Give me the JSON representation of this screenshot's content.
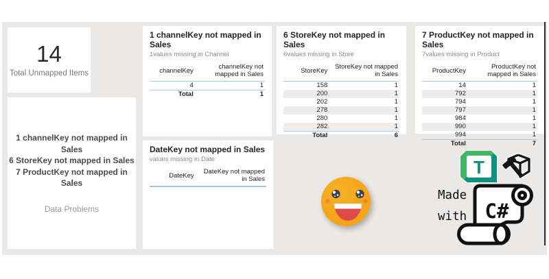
{
  "page": {
    "background": "#ffffff",
    "canvas_bg": "#EBE9E7"
  },
  "colors": {
    "accent_line": "#A6C9E8",
    "row_stripe": "#EFEDEB",
    "title_text": "#252423",
    "subtitle_text": "#8F8D8B",
    "kpi_label_text": "#7C7A78",
    "problems_text": "#4D4B49",
    "emoji_face": "#F4A51D",
    "emoji_mouth_red": "#E14B47",
    "logo_green": "#41B864",
    "logo_teal": "#0D9180"
  },
  "kpi_card": {
    "value": "14",
    "label": "Total Unmapped Items"
  },
  "problems_card": {
    "lines": [
      "1 channelKey not mapped in Sales",
      "6 StoreKey not mapped in Sales",
      "7 ProductKey not mapped in Sales"
    ],
    "label": "Data Problems"
  },
  "tables": [
    {
      "title": "1 channelKey not mapped in Sales",
      "subtitle": "1values missing in Channel",
      "columns": [
        "channelKey",
        "channelKey not mapped in Sales"
      ],
      "rows": [
        [
          "4",
          "1"
        ]
      ],
      "total": [
        "Total",
        "1"
      ]
    },
    {
      "title": "6 StoreKey not mapped in Sales",
      "subtitle": "6values missing in Store",
      "columns": [
        "StoreKey",
        "StoreKey not mapped in Sales"
      ],
      "rows": [
        [
          "158",
          "1"
        ],
        [
          "200",
          "1"
        ],
        [
          "202",
          "1"
        ],
        [
          "278",
          "1"
        ],
        [
          "280",
          "1"
        ],
        [
          "282",
          "1"
        ]
      ],
      "total": [
        "Total",
        "6"
      ]
    },
    {
      "title": "7 ProductKey not mapped in Sales",
      "subtitle": "7values missing in Product",
      "columns": [
        "ProductKey",
        "ProductKey not mapped in Sales"
      ],
      "rows": [
        [
          "14",
          "1"
        ],
        [
          "792",
          "1"
        ],
        [
          "794",
          "1"
        ],
        [
          "797",
          "1"
        ],
        [
          "984",
          "1"
        ],
        [
          "990",
          "1"
        ],
        [
          "994",
          "1"
        ]
      ],
      "total": [
        "Total",
        "7"
      ]
    },
    {
      "title": "DateKey not mapped in Sales",
      "subtitle": "values missing in Date",
      "columns": [
        "DateKey",
        "DateKey not mapped in Sales"
      ],
      "rows": [],
      "total": null
    }
  ],
  "badge": {
    "made": "Made",
    "with": "with",
    "csharp": "C#",
    "tabular_letter": "T"
  }
}
